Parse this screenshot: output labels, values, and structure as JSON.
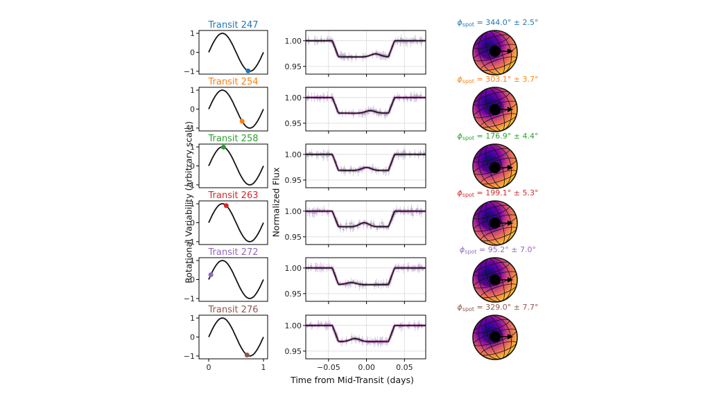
{
  "figure": {
    "left_ylabel": "Rotational Variability (arbitrary scale)",
    "mid_ylabel": "Normalized Flux",
    "mid_xlabel": "Time from Mid-Transit (days)"
  },
  "chart_data": [
    {
      "type": "line",
      "panel": "rotational-variability",
      "x_ticks": [
        "0",
        "1"
      ],
      "y_ticks": [
        "1",
        "0",
        "−1"
      ],
      "xlim": [
        0,
        1
      ],
      "ylim": [
        -1.15,
        1.15
      ],
      "curve": "sin(2π x)",
      "transits": [
        {
          "title": "Transit 247",
          "color": "#1f77b4",
          "phase": 0.72,
          "value": -0.98
        },
        {
          "title": "Transit 254",
          "color": "#ff7f0e",
          "phase": 0.61,
          "value": -0.64
        },
        {
          "title": "Transit 258",
          "color": "#2ca02c",
          "phase": 0.27,
          "value": 0.99
        },
        {
          "title": "Transit 263",
          "color": "#d62728",
          "phase": 0.32,
          "value": 0.9
        },
        {
          "title": "Transit 272",
          "color": "#9467bd",
          "phase": 0.04,
          "value": 0.25
        },
        {
          "title": "Transit 276",
          "color": "#8c564b",
          "phase": 0.7,
          "value": -0.95
        }
      ]
    },
    {
      "type": "line",
      "panel": "light-curves",
      "xlabel": "Time from Mid-Transit (days)",
      "ylabel": "Normalized Flux",
      "xlim": [
        -0.08,
        0.078
      ],
      "ylim": [
        0.935,
        1.02
      ],
      "x_ticks": [
        -0.05,
        0.0,
        0.05
      ],
      "x_tick_labels": [
        "−0.05",
        "0.00",
        "0.05"
      ],
      "y_ticks": [
        1.0,
        0.95
      ],
      "y_tick_labels": [
        "1.00",
        "0.95"
      ],
      "transit_window": [
        -0.045,
        0.037
      ],
      "series": [
        {
          "depth": 0.031,
          "spot_center": 0.012,
          "spot_amp": 0.006
        },
        {
          "depth": 0.03,
          "spot_center": 0.005,
          "spot_amp": 0.005
        },
        {
          "depth": 0.031,
          "spot_center": 0.0,
          "spot_amp": 0.006
        },
        {
          "depth": 0.03,
          "spot_center": -0.003,
          "spot_amp": 0.008
        },
        {
          "depth": 0.032,
          "spot_center": -0.02,
          "spot_amp": 0.004
        },
        {
          "depth": 0.031,
          "spot_center": -0.015,
          "spot_amp": 0.006
        }
      ]
    },
    {
      "type": "heatmap",
      "panel": "stellar-spot-maps",
      "labels": [
        {
          "value": "344.0°",
          "err": "2.5°",
          "color": "#1f77b4"
        },
        {
          "value": "303.1°",
          "err": "3.7°",
          "color": "#ff7f0e"
        },
        {
          "value": "176.9°",
          "err": "4.4°",
          "color": "#2ca02c"
        },
        {
          "value": "199.1°",
          "err": "5.3°",
          "color": "#d62728"
        },
        {
          "value": "95.2°",
          "err": "7.0°",
          "color": "#9467bd"
        },
        {
          "value": "329.0°",
          "err": "7.7°",
          "color": "#8c564b"
        }
      ],
      "phi_symbol": "ϕ",
      "phi_subscript": "spot",
      "pm": "±"
    }
  ]
}
